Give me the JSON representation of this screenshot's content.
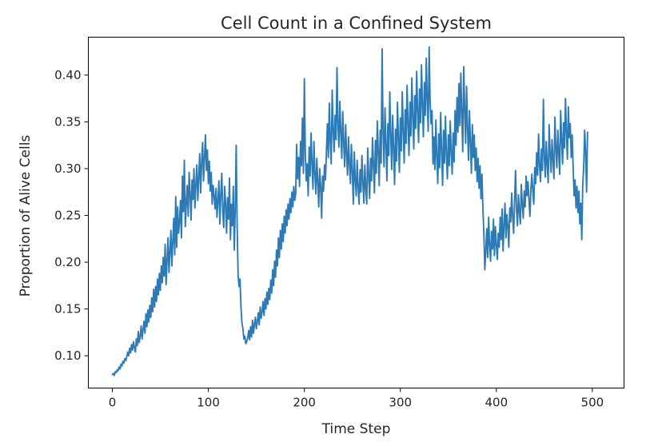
{
  "chart_data": {
    "type": "line",
    "title": "Cell Count in a Confined System",
    "xlabel": "Time Step",
    "ylabel": "Proportion of Alive Cells",
    "xlim": [
      -25,
      533
    ],
    "ylim": [
      0.0655,
      0.4405
    ],
    "x_ticks": [
      0,
      100,
      200,
      300,
      400,
      500
    ],
    "x_tick_labels": [
      "0",
      "100",
      "200",
      "300",
      "400",
      "500"
    ],
    "y_ticks": [
      0.1,
      0.15,
      0.2,
      0.25,
      0.3,
      0.35,
      0.4
    ],
    "y_tick_labels": [
      "0.10",
      "0.15",
      "0.20",
      "0.25",
      "0.30",
      "0.35",
      "0.40"
    ],
    "grid": false,
    "legend": "none",
    "line_color": "#2e7ab5",
    "series": [
      {
        "x_start": 0,
        "x_step": 1,
        "values": [
          0.08,
          0.081,
          0.079,
          0.083,
          0.082,
          0.085,
          0.084,
          0.088,
          0.086,
          0.091,
          0.089,
          0.094,
          0.092,
          0.097,
          0.095,
          0.099,
          0.104,
          0.1,
          0.108,
          0.103,
          0.112,
          0.106,
          0.115,
          0.109,
          0.104,
          0.118,
          0.111,
          0.126,
          0.114,
          0.121,
          0.132,
          0.118,
          0.128,
          0.137,
          0.124,
          0.145,
          0.131,
          0.149,
          0.136,
          0.154,
          0.141,
          0.162,
          0.147,
          0.171,
          0.152,
          0.174,
          0.158,
          0.182,
          0.165,
          0.188,
          0.17,
          0.196,
          0.178,
          0.205,
          0.185,
          0.219,
          0.176,
          0.202,
          0.226,
          0.189,
          0.211,
          0.234,
          0.196,
          0.222,
          0.247,
          0.208,
          0.27,
          0.216,
          0.259,
          0.231,
          0.244,
          0.266,
          0.226,
          0.292,
          0.254,
          0.309,
          0.238,
          0.263,
          0.282,
          0.249,
          0.296,
          0.272,
          0.245,
          0.288,
          0.267,
          0.3,
          0.258,
          0.283,
          0.304,
          0.266,
          0.291,
          0.316,
          0.274,
          0.306,
          0.328,
          0.287,
          0.312,
          0.336,
          0.298,
          0.32,
          0.284,
          0.308,
          0.276,
          0.296,
          0.262,
          0.282,
          0.271,
          0.257,
          0.279,
          0.248,
          0.266,
          0.287,
          0.241,
          0.272,
          0.295,
          0.254,
          0.237,
          0.281,
          0.262,
          0.231,
          0.269,
          0.246,
          0.29,
          0.224,
          0.262,
          0.239,
          0.281,
          0.213,
          0.256,
          0.325,
          0.24,
          0.186,
          0.174,
          0.182,
          0.152,
          0.135,
          0.129,
          0.118,
          0.121,
          0.113,
          0.115,
          0.119,
          0.127,
          0.117,
          0.131,
          0.12,
          0.138,
          0.124,
          0.133,
          0.141,
          0.129,
          0.136,
          0.146,
          0.133,
          0.152,
          0.14,
          0.147,
          0.158,
          0.143,
          0.161,
          0.15,
          0.168,
          0.155,
          0.172,
          0.16,
          0.181,
          0.167,
          0.192,
          0.175,
          0.201,
          0.184,
          0.213,
          0.196,
          0.226,
          0.205,
          0.234,
          0.214,
          0.241,
          0.222,
          0.249,
          0.231,
          0.256,
          0.239,
          0.262,
          0.246,
          0.268,
          0.253,
          0.275,
          0.259,
          0.281,
          0.266,
          0.273,
          0.326,
          0.289,
          0.312,
          0.281,
          0.329,
          0.303,
          0.354,
          0.295,
          0.396,
          0.316,
          0.287,
          0.305,
          0.271,
          0.323,
          0.292,
          0.338,
          0.306,
          0.278,
          0.329,
          0.295,
          0.273,
          0.311,
          0.286,
          0.259,
          0.3,
          0.281,
          0.247,
          0.292,
          0.276,
          0.304,
          0.288,
          0.318,
          0.348,
          0.312,
          0.37,
          0.329,
          0.305,
          0.384,
          0.342,
          0.318,
          0.357,
          0.331,
          0.408,
          0.346,
          0.323,
          0.372,
          0.339,
          0.311,
          0.361,
          0.328,
          0.302,
          0.347,
          0.316,
          0.293,
          0.334,
          0.305,
          0.284,
          0.326,
          0.297,
          0.262,
          0.318,
          0.288,
          0.271,
          0.309,
          0.28,
          0.262,
          0.299,
          0.275,
          0.314,
          0.285,
          0.263,
          0.304,
          0.279,
          0.262,
          0.322,
          0.293,
          0.268,
          0.311,
          0.287,
          0.333,
          0.304,
          0.274,
          0.33,
          0.295,
          0.351,
          0.318,
          0.282,
          0.341,
          0.306,
          0.428,
          0.338,
          0.302,
          0.365,
          0.326,
          0.287,
          0.348,
          0.314,
          0.382,
          0.336,
          0.299,
          0.357,
          0.322,
          0.283,
          0.342,
          0.308,
          0.371,
          0.333,
          0.296,
          0.354,
          0.319,
          0.382,
          0.341,
          0.306,
          0.363,
          0.327,
          0.389,
          0.348,
          0.314,
          0.371,
          0.335,
          0.397,
          0.356,
          0.321,
          0.378,
          0.343,
          0.404,
          0.361,
          0.328,
          0.385,
          0.349,
          0.411,
          0.368,
          0.334,
          0.392,
          0.357,
          0.418,
          0.374,
          0.34,
          0.43,
          0.372,
          0.348,
          0.362,
          0.305,
          0.334,
          0.299,
          0.352,
          0.313,
          0.284,
          0.337,
          0.301,
          0.36,
          0.319,
          0.282,
          0.341,
          0.306,
          0.356,
          0.315,
          0.289,
          0.336,
          0.303,
          0.351,
          0.318,
          0.294,
          0.338,
          0.307,
          0.362,
          0.325,
          0.376,
          0.339,
          0.391,
          0.346,
          0.402,
          0.358,
          0.318,
          0.409,
          0.365,
          0.327,
          0.388,
          0.344,
          0.309,
          0.362,
          0.328,
          0.295,
          0.347,
          0.312,
          0.336,
          0.298,
          0.322,
          0.286,
          0.311,
          0.279,
          0.303,
          0.268,
          0.294,
          0.257,
          0.231,
          0.192,
          0.212,
          0.236,
          0.205,
          0.248,
          0.218,
          0.201,
          0.233,
          0.214,
          0.246,
          0.207,
          0.238,
          0.219,
          0.203,
          0.231,
          0.216,
          0.248,
          0.224,
          0.257,
          0.212,
          0.239,
          0.263,
          0.226,
          0.251,
          0.238,
          0.216,
          0.258,
          0.243,
          0.274,
          0.249,
          0.231,
          0.265,
          0.298,
          0.256,
          0.239,
          0.272,
          0.254,
          0.241,
          0.283,
          0.262,
          0.247,
          0.276,
          0.259,
          0.292,
          0.271,
          0.286,
          0.267,
          0.249,
          0.278,
          0.294,
          0.276,
          0.262,
          0.301,
          0.284,
          0.317,
          0.293,
          0.337,
          0.304,
          0.286,
          0.321,
          0.298,
          0.374,
          0.312,
          0.291,
          0.329,
          0.305,
          0.285,
          0.347,
          0.316,
          0.296,
          0.331,
          0.309,
          0.289,
          0.355,
          0.322,
          0.301,
          0.341,
          0.317,
          0.294,
          0.362,
          0.331,
          0.305,
          0.349,
          0.322,
          0.375,
          0.339,
          0.31,
          0.366,
          0.333,
          0.348,
          0.312,
          0.336,
          0.302,
          0.271,
          0.288,
          0.258,
          0.281,
          0.253,
          0.276,
          0.241,
          0.263,
          0.224,
          0.282,
          0.302,
          0.341,
          0.318,
          0.275,
          0.339
        ]
      }
    ]
  }
}
